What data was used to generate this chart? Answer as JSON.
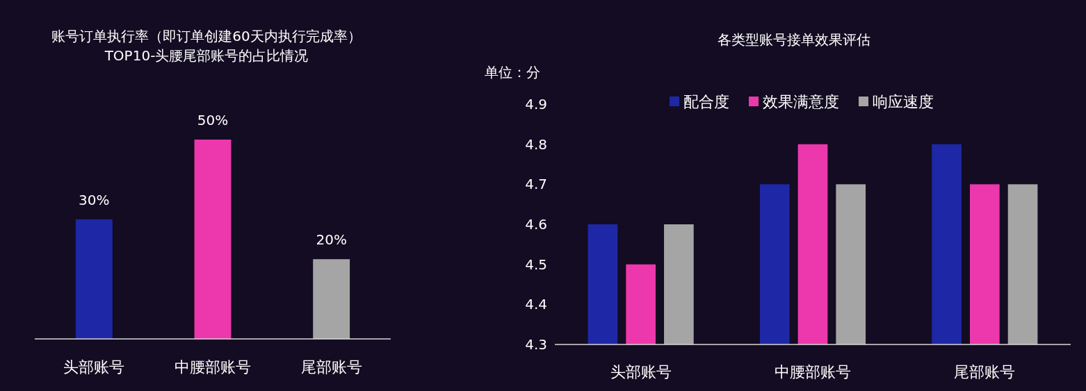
{
  "chart_data": [
    {
      "type": "bar",
      "title": "账号订单执行率（即订单创建60天内执行完成率）\nTOP10-头腰尾部账号的占比情况",
      "categories": [
        "头部账号",
        "中腰部账号",
        "尾部账号"
      ],
      "values": [
        30,
        50,
        20
      ],
      "colors": [
        "#1e28a6",
        "#ec38ac",
        "#a5a5a5"
      ],
      "value_labels": [
        "30%",
        "50%",
        "20%"
      ]
    },
    {
      "type": "bar",
      "title": "各类型账号接单效果评估",
      "ylabel": "单位：分",
      "categories": [
        "头部账号",
        "中腰部账号",
        "尾部账号"
      ],
      "series": [
        {
          "name": "配合度",
          "color": "#1e28a6",
          "values": [
            4.6,
            4.7,
            4.8
          ]
        },
        {
          "name": "效果满意度",
          "color": "#ec38ac",
          "values": [
            4.5,
            4.8,
            4.7
          ]
        },
        {
          "name": "响应速度",
          "color": "#a5a5a5",
          "values": [
            4.6,
            4.7,
            4.7
          ]
        }
      ],
      "ylim": [
        4.3,
        4.9
      ],
      "yticks": [
        4.3,
        4.4,
        4.5,
        4.6,
        4.7,
        4.8,
        4.9
      ],
      "legend": "top"
    }
  ]
}
